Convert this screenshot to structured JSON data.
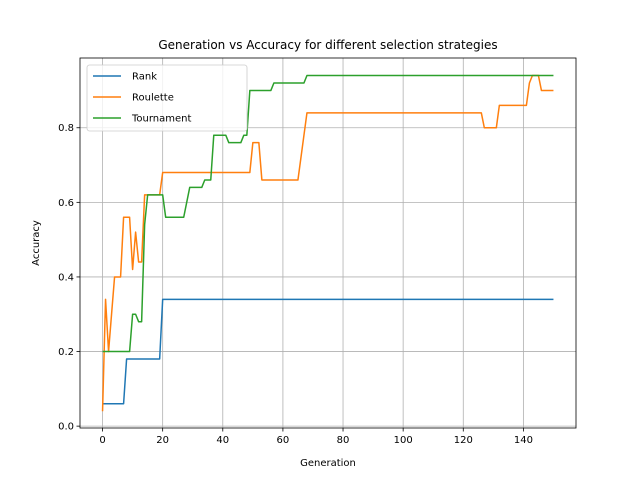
{
  "chart_data": {
    "type": "line",
    "title": "Generation vs Accuracy for different selection strategies",
    "xlabel": "Generation",
    "ylabel": "Accuracy",
    "xlim": [
      -7.5,
      157.5
    ],
    "ylim": [
      -0.005,
      0.987
    ],
    "xticks": [
      0,
      20,
      40,
      60,
      80,
      100,
      120,
      140
    ],
    "yticks": [
      0.0,
      0.2,
      0.4,
      0.6,
      0.8
    ],
    "ytick_labels": [
      "0.0",
      "0.2",
      "0.4",
      "0.6",
      "0.8"
    ],
    "grid": true,
    "legend_position": "upper-left",
    "series": [
      {
        "name": "Rank",
        "color": "#1f77b4",
        "x": [
          0,
          7,
          8,
          19,
          20,
          150
        ],
        "y": [
          0.06,
          0.06,
          0.18,
          0.18,
          0.34,
          0.34
        ]
      },
      {
        "name": "Roulette",
        "color": "#ff7f0e",
        "x": [
          0,
          1,
          2,
          3,
          4,
          5,
          6,
          7,
          8,
          9,
          10,
          11,
          12,
          13,
          14,
          19,
          20,
          49,
          50,
          52,
          53,
          54,
          65,
          67,
          68,
          126,
          127,
          131,
          132,
          141,
          142,
          143,
          145,
          146,
          150
        ],
        "y": [
          0.04,
          0.34,
          0.2,
          0.3,
          0.4,
          0.4,
          0.4,
          0.56,
          0.56,
          0.56,
          0.42,
          0.52,
          0.44,
          0.44,
          0.62,
          0.62,
          0.68,
          0.68,
          0.76,
          0.76,
          0.66,
          0.66,
          0.66,
          0.78,
          0.84,
          0.84,
          0.8,
          0.8,
          0.86,
          0.86,
          0.92,
          0.94,
          0.94,
          0.9,
          0.9
        ]
      },
      {
        "name": "Tournament",
        "color": "#2ca02c",
        "x": [
          0,
          9,
          10,
          11,
          12,
          13,
          14,
          15,
          20,
          21,
          27,
          29,
          30,
          33,
          34,
          36,
          37,
          41,
          42,
          46,
          47,
          48,
          49,
          52,
          54,
          56,
          57,
          66,
          67,
          68,
          150
        ],
        "y": [
          0.2,
          0.2,
          0.3,
          0.3,
          0.28,
          0.28,
          0.54,
          0.62,
          0.62,
          0.56,
          0.56,
          0.64,
          0.64,
          0.64,
          0.66,
          0.66,
          0.78,
          0.78,
          0.76,
          0.76,
          0.78,
          0.78,
          0.9,
          0.9,
          0.9,
          0.9,
          0.92,
          0.92,
          0.92,
          0.94,
          0.94
        ]
      }
    ]
  }
}
